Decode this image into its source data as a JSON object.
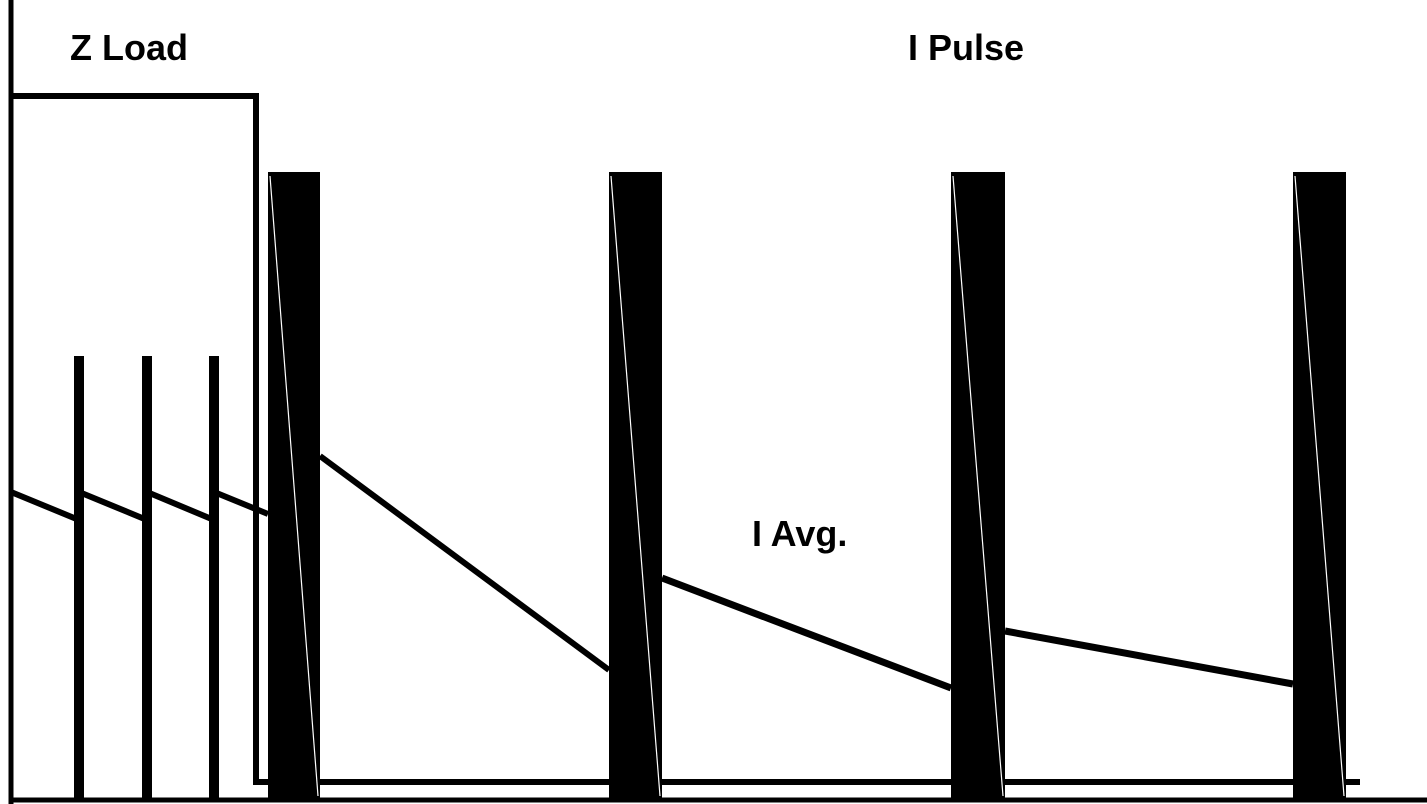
{
  "labels": {
    "z_load": "Z Load",
    "i_pulse": "I Pulse",
    "i_avg": "I Avg."
  },
  "colors": {
    "stroke": "#000000",
    "background": "#ffffff"
  }
}
